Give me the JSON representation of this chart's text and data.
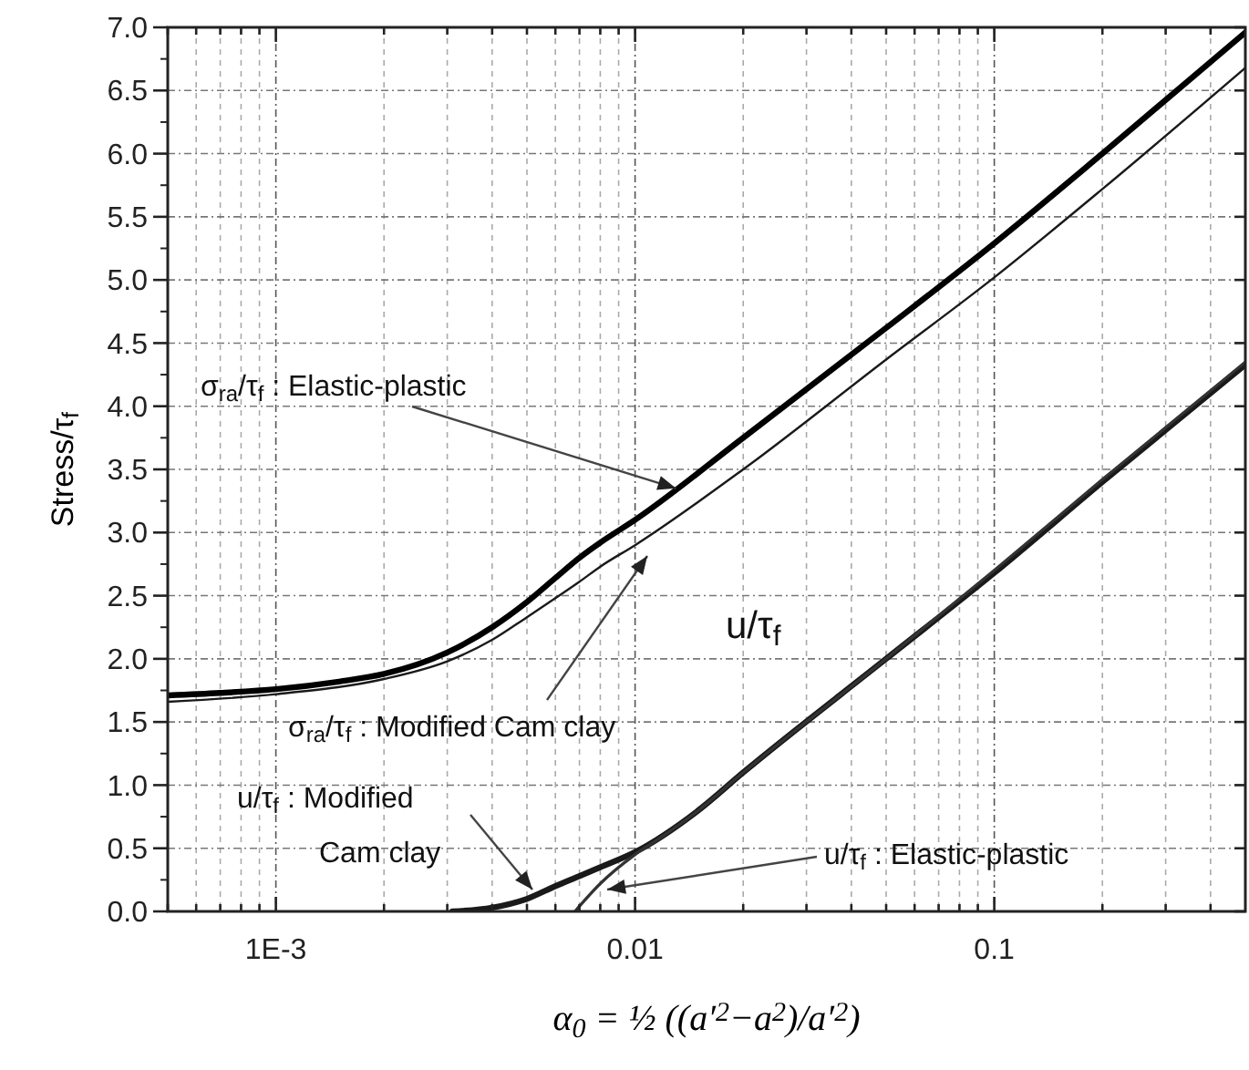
{
  "chart_data": {
    "type": "line",
    "xlabel": "α$_{0}$ = ½ ((a′$^{2}$−a$^{2}$)/a′$^{2}$)",
    "ylabel": "Stress/τ$_{f}$",
    "log": "x",
    "grid": true,
    "marker": "none",
    "line_style": "solid",
    "xlim": [
      0.0005,
      0.5
    ],
    "ylim": [
      0,
      7
    ],
    "xticks": [
      {
        "value": 0.0005,
        "label": null
      },
      {
        "value": 0.0006,
        "label": null
      },
      {
        "value": 0.0007,
        "label": null
      },
      {
        "value": 0.0008,
        "label": null
      },
      {
        "value": 0.0009,
        "label": null
      },
      {
        "value": 0.001,
        "label": "1E-3"
      },
      {
        "value": 0.002,
        "label": null
      },
      {
        "value": 0.003,
        "label": null
      },
      {
        "value": 0.004,
        "label": null
      },
      {
        "value": 0.005,
        "label": null
      },
      {
        "value": 0.006,
        "label": null
      },
      {
        "value": 0.007,
        "label": null
      },
      {
        "value": 0.008,
        "label": null
      },
      {
        "value": 0.009,
        "label": null
      },
      {
        "value": 0.01,
        "label": "0.01"
      },
      {
        "value": 0.02,
        "label": null
      },
      {
        "value": 0.03,
        "label": null
      },
      {
        "value": 0.04,
        "label": null
      },
      {
        "value": 0.05,
        "label": null
      },
      {
        "value": 0.06,
        "label": null
      },
      {
        "value": 0.07,
        "label": null
      },
      {
        "value": 0.08,
        "label": null
      },
      {
        "value": 0.09,
        "label": null
      },
      {
        "value": 0.1,
        "label": "0.1"
      },
      {
        "value": 0.2,
        "label": null
      },
      {
        "value": 0.3,
        "label": null
      },
      {
        "value": 0.4,
        "label": null
      }
    ],
    "yticks": [
      {
        "value": 0,
        "label": "0.0"
      },
      {
        "value": 0.5,
        "label": "0.5"
      },
      {
        "value": 1,
        "label": "1.0"
      },
      {
        "value": 1.5,
        "label": "1.5"
      },
      {
        "value": 2,
        "label": "2.0"
      },
      {
        "value": 2.5,
        "label": "2.5"
      },
      {
        "value": 3,
        "label": "3.0"
      },
      {
        "value": 3.5,
        "label": "3.5"
      },
      {
        "value": 4,
        "label": "4.0"
      },
      {
        "value": 4.5,
        "label": "4.5"
      },
      {
        "value": 5,
        "label": "5.0"
      },
      {
        "value": 5.5,
        "label": "5.5"
      },
      {
        "value": 6,
        "label": "6.0"
      },
      {
        "value": 6.5,
        "label": "6.5"
      },
      {
        "value": 7,
        "label": "7.0"
      }
    ],
    "series": [
      {
        "color": "#000000",
        "x": [
          0.0005,
          0.0007,
          0.001,
          0.0015,
          0.002,
          0.003,
          0.004,
          0.005,
          0.006,
          0.007,
          0.008,
          0.01,
          0.02,
          0.05,
          0.1,
          0.2,
          0.5
        ],
        "values": [
          1.71,
          1.73,
          1.76,
          1.82,
          1.88,
          2.05,
          2.25,
          2.45,
          2.64,
          2.8,
          2.92,
          3.1,
          3.75,
          4.62,
          5.29,
          6.0,
          6.96
        ]
      },
      {
        "color": "#1a1a1a",
        "x": [
          0.0005,
          0.001,
          0.002,
          0.003,
          0.004,
          0.005,
          0.006,
          0.007,
          0.008,
          0.01,
          0.02,
          0.05,
          0.1,
          0.2,
          0.5
        ],
        "values": [
          1.66,
          1.72,
          1.84,
          1.98,
          2.15,
          2.33,
          2.48,
          2.61,
          2.73,
          2.9,
          3.5,
          4.37,
          5.02,
          5.72,
          6.68
        ]
      },
      {
        "color": "#1a1a1a",
        "x": [
          0.0031,
          0.004,
          0.005,
          0.006,
          0.007,
          0.008,
          0.01,
          0.015,
          0.02,
          0.05,
          0.1,
          0.2,
          0.5
        ],
        "values": [
          0,
          0.03,
          0.1,
          0.2,
          0.28,
          0.35,
          0.47,
          0.8,
          1.1,
          2.0,
          2.68,
          3.4,
          4.33
        ]
      },
      {
        "color": "#333333",
        "x": [
          0.0068,
          0.008,
          0.01,
          0.012,
          0.015,
          0.02,
          0.05,
          0.1,
          0.2,
          0.5
        ],
        "values": [
          0,
          0.22,
          0.45,
          0.6,
          0.8,
          1.1,
          2.0,
          2.7,
          3.42,
          4.35
        ]
      }
    ],
    "annotations": [
      {
        "text": "σ$_{ra}$/τ$_{f}$ : Elastic-plastic",
        "x": 0.013,
        "y": 3.35
      },
      "σ$_{ra}$/τ$_{f}$ : Modified Cam clay",
      "u/τ$_{f}$ : Modified Cam clay",
      "u/τ$_{f}$ : Elastic-plastic",
      "u/τ$_{f}$"
    ]
  }
}
